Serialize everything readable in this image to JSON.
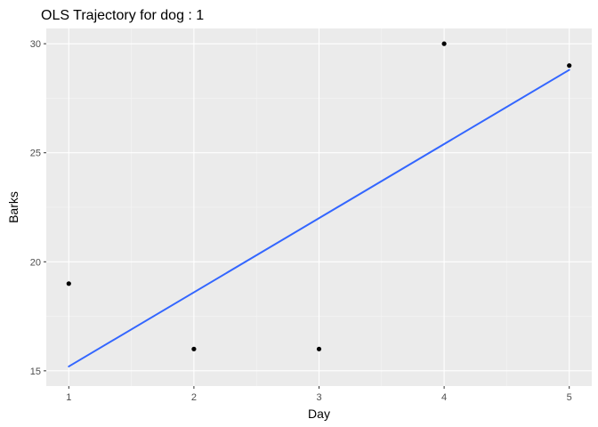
{
  "chart_data": {
    "type": "scatter",
    "title": "OLS Trajectory for dog :  1",
    "xlabel": "Day",
    "ylabel": "Barks",
    "xlim": [
      0.82,
      5.18
    ],
    "ylim": [
      14.3,
      30.7
    ],
    "x_ticks": [
      1,
      2,
      3,
      4,
      5
    ],
    "x_tick_labels": [
      "1",
      "2",
      "3",
      "4",
      "5"
    ],
    "y_ticks": [
      15,
      20,
      25,
      30
    ],
    "y_tick_labels": [
      "15",
      "20",
      "25",
      "30"
    ],
    "points": [
      {
        "x": 1,
        "y": 19
      },
      {
        "x": 2,
        "y": 16
      },
      {
        "x": 3,
        "y": 16
      },
      {
        "x": 4,
        "y": 30
      },
      {
        "x": 5,
        "y": 29
      }
    ],
    "fit_line": {
      "x": [
        1,
        5
      ],
      "y": [
        15.2,
        28.8
      ]
    },
    "grid": true,
    "colors": {
      "panel_background": "#ebebeb",
      "grid_major": "#ffffff",
      "grid_minor": "#f5f5f5",
      "point": "#000000",
      "fit_line": "#3366ff",
      "tick_label": "#4d4d4d"
    }
  }
}
